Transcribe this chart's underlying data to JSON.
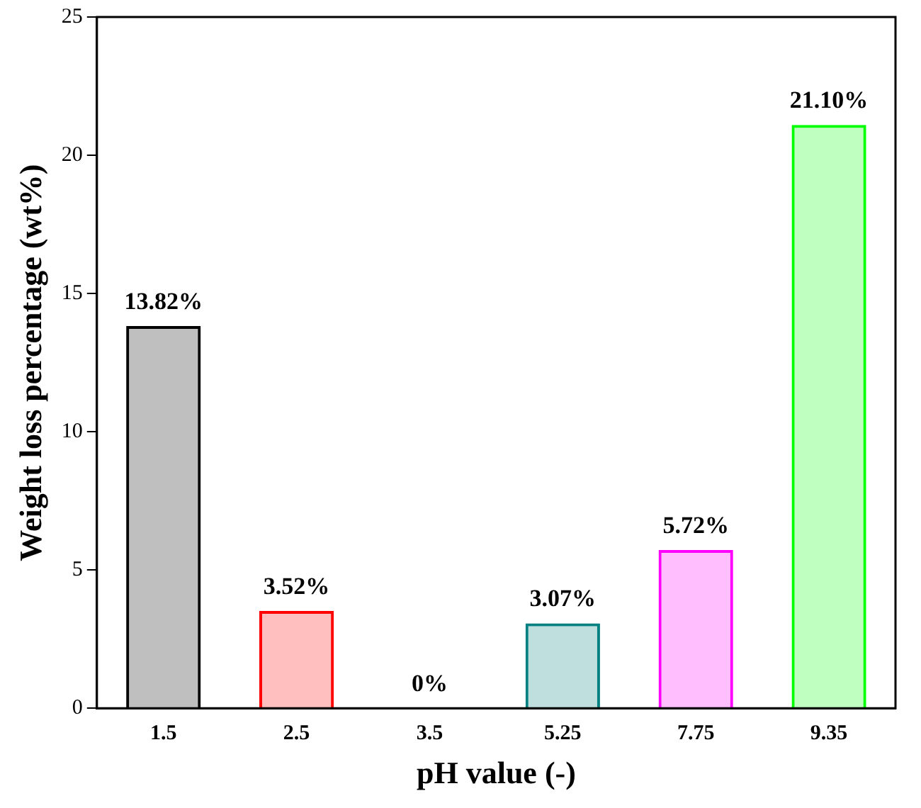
{
  "chart_data": {
    "type": "bar",
    "xlabel": "pH value (-)",
    "ylabel": "Weight loss percentage (wt%)",
    "categories": [
      "1.5",
      "2.5",
      "3.5",
      "5.25",
      "7.75",
      "9.35"
    ],
    "values": [
      13.82,
      3.52,
      0,
      3.07,
      5.72,
      21.1
    ],
    "value_labels": [
      "13.82%",
      "3.52%",
      "0%",
      "3.07%",
      "5.72%",
      "21.10%"
    ],
    "colors": [
      "#000000",
      "#ff0000",
      "#0000ff",
      "#008080",
      "#ff00ff",
      "#00ff00"
    ],
    "ylim": [
      0,
      25
    ],
    "yticks": [
      0,
      5,
      10,
      15,
      20,
      25
    ],
    "grid": false,
    "legend": false
  }
}
